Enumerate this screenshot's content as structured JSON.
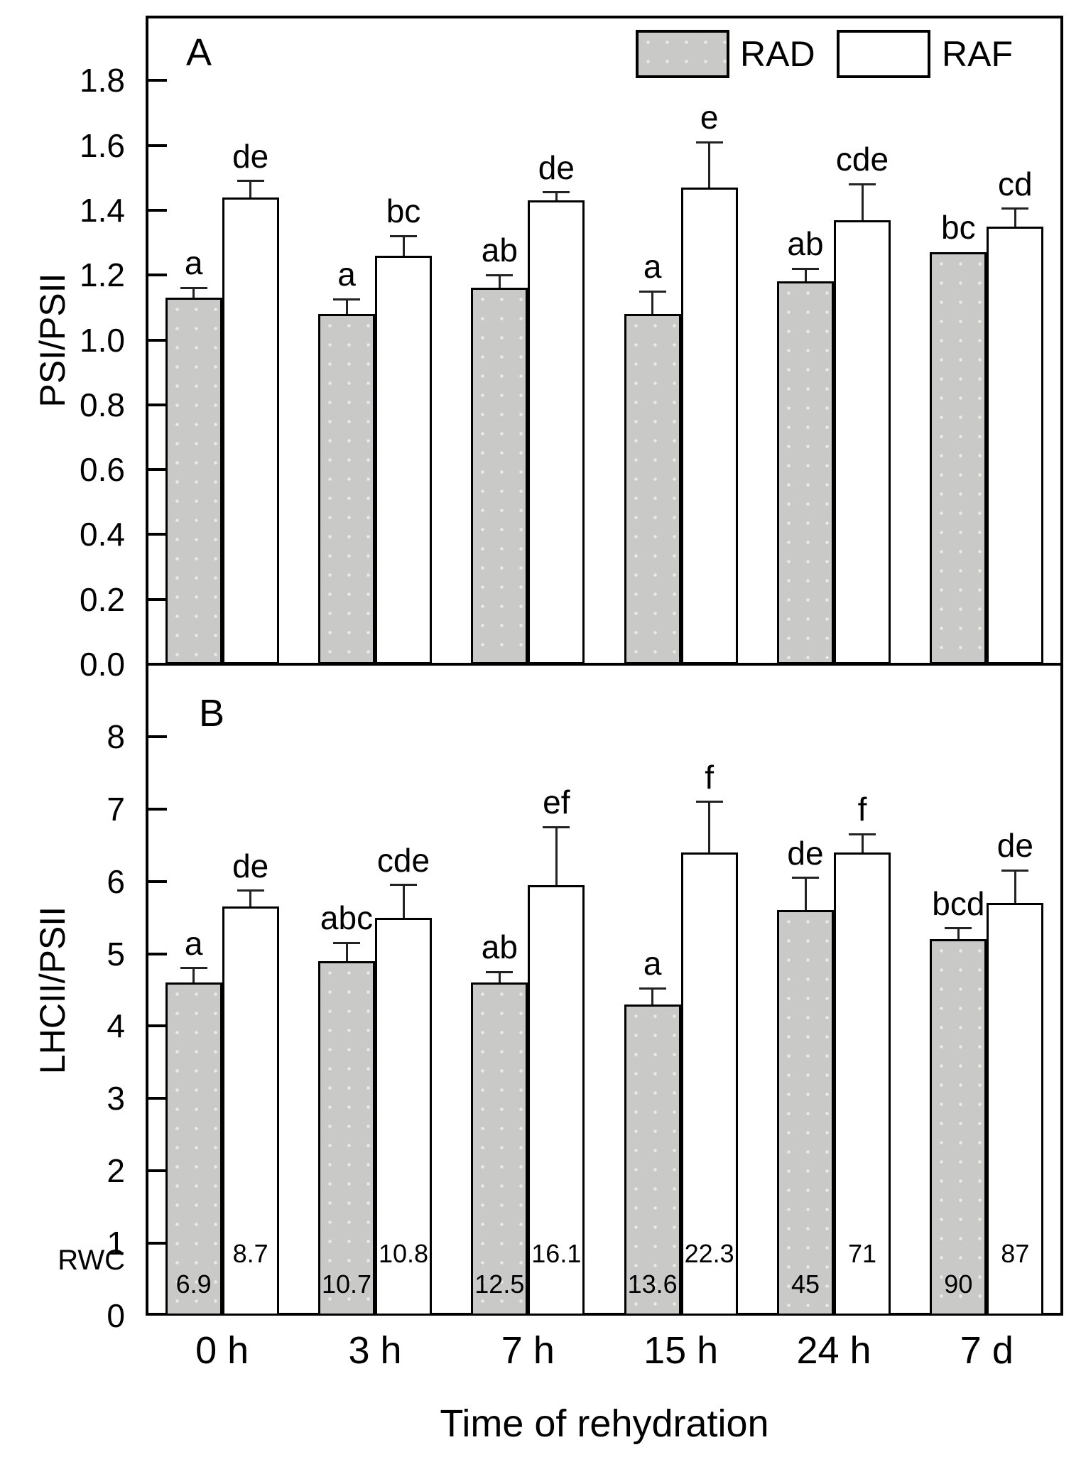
{
  "figure": {
    "x_title": "Time of rehydration",
    "rwc_label": "RWC",
    "legend": {
      "position": "top-right",
      "rad": {
        "label": "RAD",
        "fill": "#c9c9c7"
      },
      "raf": {
        "label": "RAF",
        "fill": "#ffffff"
      }
    },
    "colors": {
      "axis": "#000000",
      "error_bar": "#222222",
      "bar_gray": "#c9c9c7",
      "bar_white": "#ffffff"
    }
  },
  "chart_data": [
    {
      "type": "bar",
      "panel": "A",
      "ylabel": "PSI/PSII",
      "xlabel": "",
      "ylim": [
        0,
        2.0
      ],
      "grid": false,
      "yticks": [
        0,
        0.2,
        0.4,
        0.6,
        0.8,
        1.0,
        1.2,
        1.4,
        1.6,
        1.8
      ],
      "ytick_labels": [
        "0.0",
        "0.2",
        "0.4",
        "0.6",
        "0.8",
        "1.0",
        "1.2",
        "1.4",
        "1.6",
        "1.8"
      ],
      "categories": [
        "0 h",
        "3 h",
        "7 h",
        "15 h",
        "24 h",
        "7 d"
      ],
      "series": [
        {
          "name": "RAD",
          "fill": "#c9c9c7",
          "values": [
            1.13,
            1.08,
            1.16,
            1.08,
            1.18,
            1.27
          ],
          "errors": [
            0.03,
            0.045,
            0.04,
            0.07,
            0.04,
            0
          ],
          "letters": [
            "a",
            "a",
            "ab",
            "a",
            "ab",
            "bc"
          ]
        },
        {
          "name": "RAF",
          "fill": "#ffffff",
          "values": [
            1.44,
            1.26,
            1.43,
            1.47,
            1.37,
            1.35
          ],
          "errors": [
            0.05,
            0.06,
            0.025,
            0.14,
            0.11,
            0.055
          ],
          "letters": [
            "de",
            "bc",
            "de",
            "e",
            "cde",
            "cd"
          ]
        }
      ]
    },
    {
      "type": "bar",
      "panel": "B",
      "ylabel": "LHCII/PSII",
      "xlabel": "Time of rehydration",
      "ylim": [
        0,
        9
      ],
      "grid": false,
      "yticks": [
        0,
        1,
        2,
        3,
        4,
        5,
        6,
        7,
        8
      ],
      "ytick_labels": [
        "0",
        "1",
        "2",
        "3",
        "4",
        "5",
        "6",
        "7",
        "8"
      ],
      "categories": [
        "0 h",
        "3 h",
        "7 h",
        "15 h",
        "24 h",
        "7 d"
      ],
      "series": [
        {
          "name": "RAD",
          "fill": "#c9c9c7",
          "values": [
            4.6,
            4.9,
            4.6,
            4.3,
            5.6,
            5.2
          ],
          "errors": [
            0.2,
            0.25,
            0.15,
            0.22,
            0.45,
            0.15
          ],
          "letters": [
            "a",
            "abc",
            "ab",
            "a",
            "de",
            "bcd"
          ],
          "rwc": [
            "6.9",
            "10.7",
            "12.5",
            "13.6",
            "45",
            "90"
          ]
        },
        {
          "name": "RAF",
          "fill": "#ffffff",
          "values": [
            5.65,
            5.5,
            5.95,
            6.4,
            6.4,
            5.7
          ],
          "errors": [
            0.22,
            0.45,
            0.8,
            0.7,
            0.25,
            0.45
          ],
          "letters": [
            "de",
            "cde",
            "ef",
            "f",
            "f",
            "de"
          ],
          "rwc": [
            "8.7",
            "10.8",
            "16.1",
            "22.3",
            "71",
            "87"
          ]
        }
      ]
    }
  ]
}
